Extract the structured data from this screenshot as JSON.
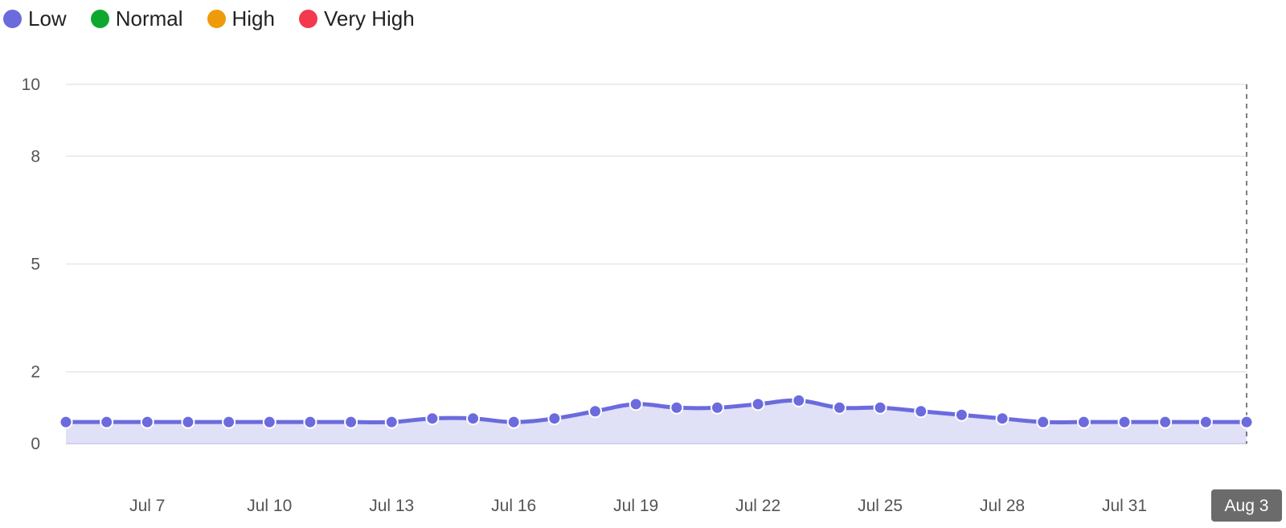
{
  "legend": {
    "items": [
      {
        "label": "Low",
        "color": "#6b6bde"
      },
      {
        "label": "Normal",
        "color": "#0ea82f"
      },
      {
        "label": "High",
        "color": "#ef9a0b"
      },
      {
        "label": "Very High",
        "color": "#f2394d"
      }
    ]
  },
  "chart_data": {
    "type": "area",
    "title": "",
    "xlabel": "",
    "ylabel": "",
    "ylim": [
      0,
      10
    ],
    "y_ticks": [
      0,
      2,
      5,
      8,
      10
    ],
    "grid": true,
    "legend_position": "top-left",
    "x_tick_labels": [
      "Jul 7",
      "Jul 10",
      "Jul 13",
      "Jul 16",
      "Jul 19",
      "Jul 22",
      "Jul 25",
      "Jul 28",
      "Jul 31"
    ],
    "highlighted_x_label": "Aug 3",
    "series": [
      {
        "name": "Low",
        "color": "#6b6bde",
        "fill": "#e0e0f7",
        "x": [
          "Jul 5",
          "Jul 6",
          "Jul 7",
          "Jul 8",
          "Jul 9",
          "Jul 10",
          "Jul 11",
          "Jul 12",
          "Jul 13",
          "Jul 14",
          "Jul 15",
          "Jul 16",
          "Jul 17",
          "Jul 18",
          "Jul 19",
          "Jul 20",
          "Jul 21",
          "Jul 22",
          "Jul 23",
          "Jul 24",
          "Jul 25",
          "Jul 26",
          "Jul 27",
          "Jul 28",
          "Jul 29",
          "Jul 30",
          "Jul 31",
          "Aug 1",
          "Aug 2",
          "Aug 3"
        ],
        "values": [
          0.6,
          0.6,
          0.6,
          0.6,
          0.6,
          0.6,
          0.6,
          0.6,
          0.6,
          0.7,
          0.7,
          0.6,
          0.7,
          0.9,
          1.1,
          1.0,
          1.0,
          1.1,
          1.2,
          1.0,
          1.0,
          0.9,
          0.8,
          0.7,
          0.6,
          0.6,
          0.6,
          0.6,
          0.6,
          0.6
        ]
      }
    ]
  }
}
